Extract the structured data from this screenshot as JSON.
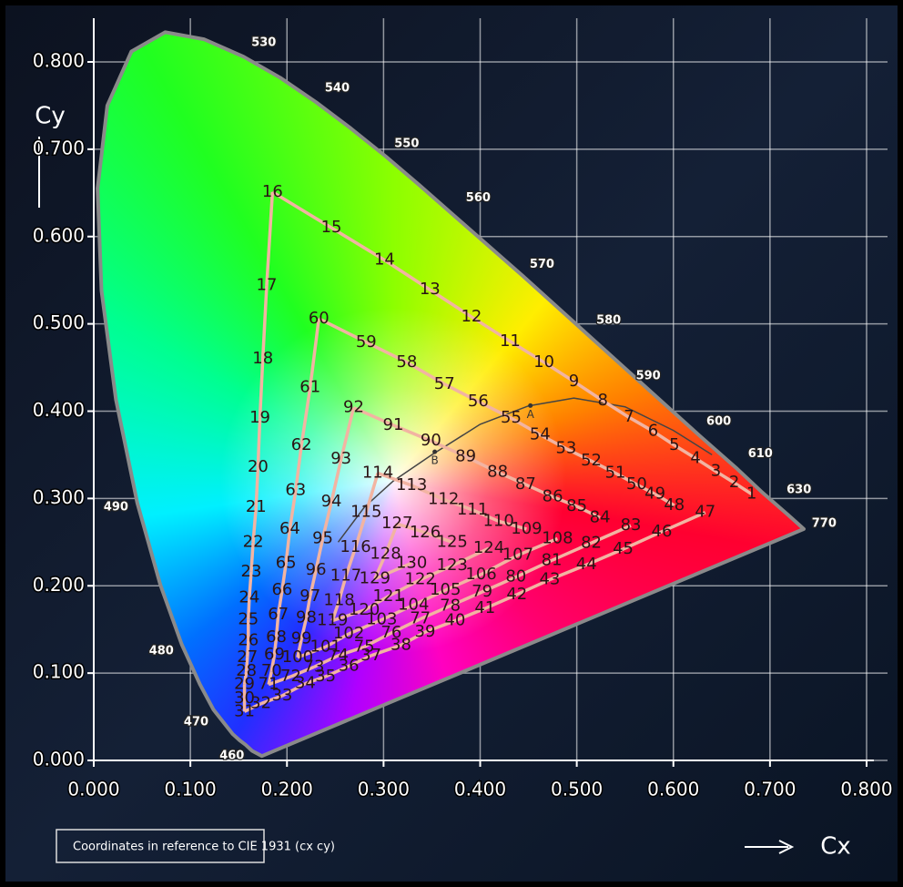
{
  "chart_data": {
    "type": "scatter",
    "x_label": "Cx",
    "y_label": "Cy",
    "note": "Coordinates in reference to CIE 1931 (cx cy)",
    "xlim": [
      0,
      0.8
    ],
    "ylim": [
      0,
      0.8
    ],
    "xticks": [
      {
        "value": 0,
        "label": "0.000"
      },
      {
        "value": 0.1,
        "label": "0.100"
      },
      {
        "value": 0.2,
        "label": "0.200"
      },
      {
        "value": 0.3,
        "label": "0.300"
      },
      {
        "value": 0.4,
        "label": "0.400"
      },
      {
        "value": 0.5,
        "label": "0.500"
      },
      {
        "value": 0.6,
        "label": "0.600"
      },
      {
        "value": 0.7,
        "label": "0.700"
      },
      {
        "value": 0.8,
        "label": "0.800"
      }
    ],
    "yticks": [
      {
        "value": 0,
        "label": "0.000"
      },
      {
        "value": 0.1,
        "label": "0.100"
      },
      {
        "value": 0.2,
        "label": "0.200"
      },
      {
        "value": 0.3,
        "label": "0.300"
      },
      {
        "value": 0.4,
        "label": "0.400"
      },
      {
        "value": 0.5,
        "label": "0.500"
      },
      {
        "value": 0.6,
        "label": "0.600"
      },
      {
        "value": 0.7,
        "label": "0.700"
      },
      {
        "value": 0.8,
        "label": "0.800"
      }
    ],
    "grid": true,
    "series": [
      {
        "color": "#f2b4a2",
        "labels": [
          1,
          2,
          3,
          4,
          5,
          6,
          7,
          8,
          9,
          10,
          11,
          12,
          13,
          14,
          15,
          16,
          17,
          18,
          19,
          20,
          21,
          22,
          23,
          24,
          25,
          26,
          27,
          28,
          29,
          30,
          31,
          32,
          33,
          34,
          35,
          36,
          37,
          38,
          39,
          40,
          41,
          42,
          43,
          44,
          45,
          46,
          47
        ],
        "x": [
          0.681,
          0.663,
          0.644,
          0.623,
          0.601,
          0.579,
          0.554,
          0.527,
          0.497,
          0.466,
          0.431,
          0.391,
          0.348,
          0.301,
          0.246,
          0.185,
          0.179,
          0.175,
          0.172,
          0.17,
          0.168,
          0.165,
          0.163,
          0.161,
          0.16,
          0.16,
          0.159,
          0.158,
          0.156,
          0.156,
          0.156,
          0.173,
          0.195,
          0.219,
          0.24,
          0.264,
          0.287,
          0.318,
          0.343,
          0.374,
          0.405,
          0.438,
          0.472,
          0.51,
          0.548,
          0.588,
          0.633
        ],
        "y": [
          0.305,
          0.318,
          0.331,
          0.346,
          0.361,
          0.377,
          0.393,
          0.412,
          0.434,
          0.456,
          0.48,
          0.508,
          0.539,
          0.573,
          0.61,
          0.651,
          0.544,
          0.46,
          0.392,
          0.336,
          0.29,
          0.25,
          0.216,
          0.186,
          0.161,
          0.137,
          0.118,
          0.102,
          0.087,
          0.071,
          0.056,
          0.065,
          0.074,
          0.088,
          0.096,
          0.108,
          0.12,
          0.132,
          0.147,
          0.16,
          0.174,
          0.19,
          0.207,
          0.224,
          0.242,
          0.262,
          0.284
        ]
      },
      {
        "color": "#f2b4a2",
        "labels": [
          48,
          49,
          50,
          51,
          52,
          53,
          54,
          55,
          56,
          57,
          58,
          59,
          60,
          61,
          62,
          63,
          64,
          65,
          66,
          67,
          68,
          69,
          70,
          71,
          72,
          73,
          74,
          75,
          76,
          77,
          78,
          79,
          80,
          81,
          82,
          83
        ],
        "x": [
          0.601,
          0.581,
          0.562,
          0.54,
          0.515,
          0.489,
          0.462,
          0.432,
          0.398,
          0.363,
          0.324,
          0.282,
          0.233,
          0.224,
          0.215,
          0.209,
          0.203,
          0.199,
          0.195,
          0.191,
          0.189,
          0.187,
          0.184,
          0.181,
          0.204,
          0.228,
          0.253,
          0.28,
          0.308,
          0.338,
          0.369,
          0.402,
          0.437,
          0.474,
          0.515,
          0.556
        ],
        "y": [
          0.292,
          0.305,
          0.316,
          0.329,
          0.343,
          0.357,
          0.373,
          0.392,
          0.411,
          0.431,
          0.456,
          0.479,
          0.506,
          0.427,
          0.361,
          0.309,
          0.265,
          0.226,
          0.195,
          0.167,
          0.141,
          0.121,
          0.102,
          0.087,
          0.096,
          0.107,
          0.12,
          0.13,
          0.146,
          0.162,
          0.177,
          0.193,
          0.21,
          0.229,
          0.249,
          0.269
        ]
      },
      {
        "color": "#f2b4a2",
        "labels": [
          84,
          85,
          86,
          87,
          88,
          89,
          90,
          91,
          92,
          93,
          94,
          95,
          96,
          97,
          98,
          99,
          100,
          101,
          102,
          103,
          104,
          105,
          106,
          107,
          108
        ],
        "x": [
          0.524,
          0.5,
          0.475,
          0.447,
          0.418,
          0.385,
          0.349,
          0.31,
          0.269,
          0.256,
          0.246,
          0.237,
          0.23,
          0.224,
          0.22,
          0.215,
          0.211,
          0.24,
          0.264,
          0.298,
          0.331,
          0.364,
          0.401,
          0.439,
          0.48
        ],
        "y": [
          0.278,
          0.291,
          0.302,
          0.316,
          0.33,
          0.348,
          0.366,
          0.384,
          0.404,
          0.345,
          0.296,
          0.254,
          0.218,
          0.188,
          0.163,
          0.139,
          0.118,
          0.13,
          0.145,
          0.161,
          0.178,
          0.195,
          0.213,
          0.235,
          0.254
        ]
      },
      {
        "color": "#f2b4a2",
        "labels": [
          109,
          110,
          111,
          112,
          113,
          114,
          115,
          116,
          117,
          118,
          119,
          120,
          121,
          122,
          123,
          124
        ],
        "x": [
          0.448,
          0.419,
          0.392,
          0.362,
          0.329,
          0.294,
          0.282,
          0.271,
          0.261,
          0.254,
          0.247,
          0.28,
          0.305,
          0.338,
          0.371,
          0.409
        ],
        "y": [
          0.265,
          0.274,
          0.287,
          0.299,
          0.315,
          0.329,
          0.284,
          0.244,
          0.211,
          0.183,
          0.16,
          0.172,
          0.188,
          0.207,
          0.223,
          0.243
        ]
      },
      {
        "color": "#f2b4a2",
        "labels": [
          125,
          126,
          127,
          128,
          129,
          130
        ],
        "x": [
          0.371,
          0.343,
          0.314,
          0.302,
          0.291,
          0.329
        ],
        "y": [
          0.25,
          0.261,
          0.271,
          0.236,
          0.208,
          0.226
        ]
      }
    ],
    "spectral_locus": {
      "x": [
        0.174,
        0.164,
        0.157,
        0.151,
        0.144,
        0.124,
        0.11,
        0.091,
        0.069,
        0.045,
        0.023,
        0.008,
        0.004,
        0.014,
        0.039,
        0.074,
        0.114,
        0.155,
        0.193,
        0.23,
        0.266,
        0.302,
        0.337,
        0.373,
        0.444,
        0.512,
        0.575,
        0.627,
        0.666,
        0.691,
        0.719,
        0.735
      ],
      "y": [
        0.005,
        0.011,
        0.018,
        0.023,
        0.03,
        0.058,
        0.087,
        0.133,
        0.201,
        0.295,
        0.413,
        0.538,
        0.655,
        0.75,
        0.812,
        0.834,
        0.826,
        0.806,
        0.782,
        0.754,
        0.724,
        0.692,
        0.659,
        0.624,
        0.555,
        0.487,
        0.424,
        0.372,
        0.334,
        0.308,
        0.281,
        0.265
      ]
    },
    "wavelength_labels": {
      "labels": [
        530,
        540,
        550,
        560,
        570,
        580,
        590,
        600,
        610,
        630,
        770,
        490,
        480,
        470,
        460
      ],
      "x": [
        0.176,
        0.252,
        0.324,
        0.398,
        0.464,
        0.533,
        0.574,
        0.647,
        0.69,
        0.73,
        0.756,
        0.023,
        0.07,
        0.106,
        0.143
      ],
      "y": [
        0.822,
        0.77,
        0.706,
        0.644,
        0.568,
        0.504,
        0.44,
        0.388,
        0.351,
        0.31,
        0.271,
        0.29,
        0.125,
        0.044,
        0.005
      ]
    },
    "planckian_locus": {
      "x": [
        0.253,
        0.28,
        0.31,
        0.35,
        0.4,
        0.45,
        0.497,
        0.55,
        0.6,
        0.64
      ],
      "y": [
        0.25,
        0.29,
        0.32,
        0.35,
        0.385,
        0.406,
        0.415,
        0.405,
        0.378,
        0.35
      ]
    },
    "annotations": [
      {
        "text": "A",
        "x": 0.452,
        "y": 0.396
      },
      {
        "text": "B",
        "x": 0.353,
        "y": 0.343
      }
    ]
  }
}
